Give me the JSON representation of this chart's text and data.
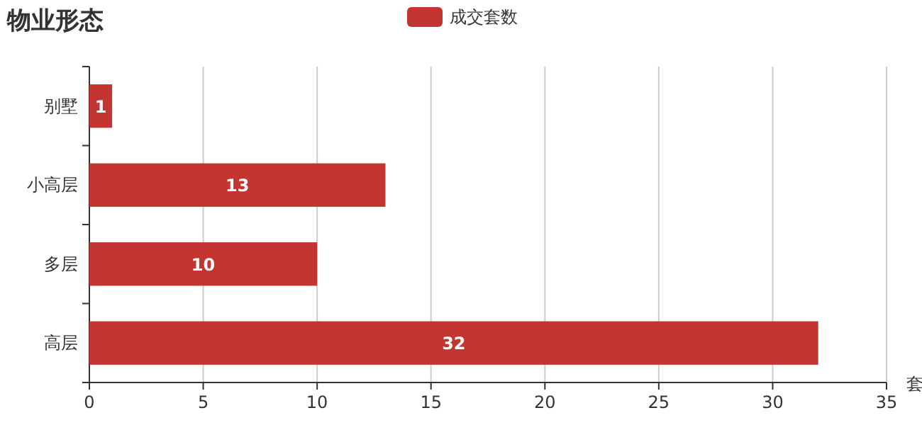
{
  "chart_data": {
    "type": "bar",
    "orientation": "horizontal",
    "title": "物业形态",
    "xlabel": "套",
    "categories": [
      "别墅",
      "小高层",
      "多层",
      "高层"
    ],
    "series": [
      {
        "name": "成交套数",
        "color": "#c23531",
        "values": [
          1,
          13,
          10,
          32
        ]
      }
    ],
    "xlim": [
      0,
      35
    ],
    "xticks": [
      0,
      5,
      10,
      15,
      20,
      25,
      30,
      35
    ],
    "grid": "x",
    "legend": "top",
    "data_labels": true
  }
}
